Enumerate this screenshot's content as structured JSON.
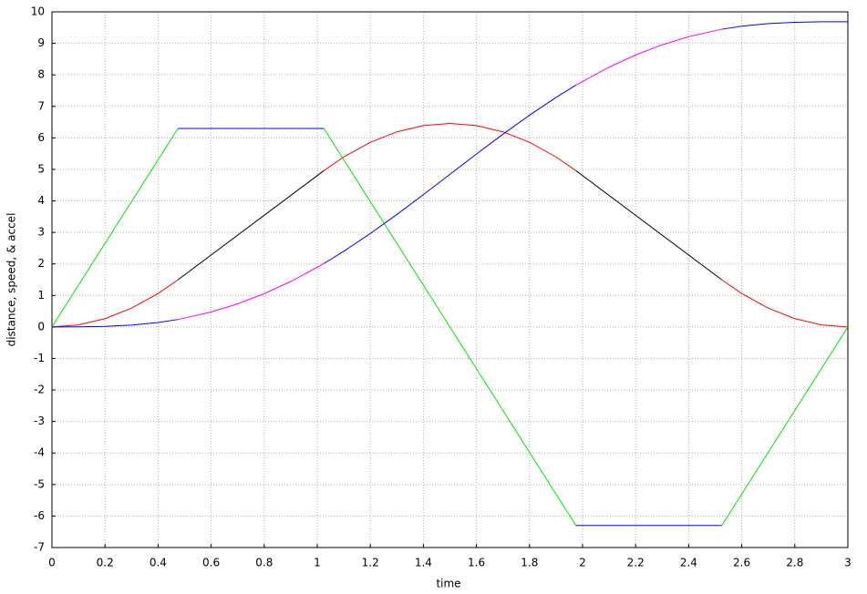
{
  "chart_data": {
    "type": "line",
    "xlabel": "time",
    "ylabel": "distance, speed, & accel",
    "xlim": [
      0,
      3
    ],
    "ylim": [
      -7,
      10
    ],
    "xticks": [
      0,
      0.2,
      0.4,
      0.6,
      0.8,
      1,
      1.2,
      1.4,
      1.6,
      1.8,
      2,
      2.2,
      2.4,
      2.6,
      2.8,
      3
    ],
    "yticks": [
      -7,
      -6,
      -5,
      -4,
      -3,
      -2,
      -1,
      0,
      1,
      2,
      3,
      4,
      5,
      6,
      7,
      8,
      9,
      10
    ],
    "grid": true,
    "series": [
      {
        "color": "#00e600",
        "x": [
          0,
          0.475
        ],
        "values": [
          0,
          6.3
        ]
      },
      {
        "color": "#0000ff",
        "x": [
          0.475,
          1.025
        ],
        "values": [
          6.3,
          6.3
        ]
      },
      {
        "color": "#00e600",
        "x": [
          1.025,
          1.975
        ],
        "values": [
          6.3,
          -6.3
        ]
      },
      {
        "color": "#0000ff",
        "x": [
          1.975,
          2.525
        ],
        "values": [
          -6.3,
          -6.3
        ]
      },
      {
        "color": "#00e600",
        "x": [
          2.525,
          3
        ],
        "values": [
          -6.3,
          0
        ]
      },
      {
        "color": "#ff0000",
        "x": [
          0,
          0.1,
          0.2,
          0.3,
          0.4,
          0.475
        ],
        "values": [
          0,
          0.066,
          0.265,
          0.597,
          1.061,
          1.496
        ]
      },
      {
        "color": "#000000",
        "x": [
          0.475,
          1.025
        ],
        "values": [
          1.496,
          4.961
        ]
      },
      {
        "color": "#ff0000",
        "x": [
          1.025,
          1.1,
          1.2,
          1.3,
          1.4,
          1.5,
          1.6,
          1.7,
          1.8,
          1.9,
          1.975
        ],
        "values": [
          4.961,
          5.396,
          5.86,
          6.192,
          6.391,
          6.457,
          6.391,
          6.192,
          5.86,
          5.396,
          4.961
        ]
      },
      {
        "color": "#000000",
        "x": [
          1.975,
          2.525
        ],
        "values": [
          4.961,
          1.496
        ]
      },
      {
        "color": "#ff0000",
        "x": [
          2.525,
          2.6,
          2.7,
          2.8,
          2.9,
          3
        ],
        "values": [
          1.496,
          1.061,
          0.597,
          0.265,
          0.066,
          0
        ]
      },
      {
        "color": "#0000ff",
        "x": [
          0,
          0.1,
          0.2,
          0.3,
          0.4,
          0.475
        ],
        "values": [
          0,
          0.0022,
          0.0177,
          0.0597,
          0.1415,
          0.2369
        ]
      },
      {
        "color": "#ff00ff",
        "x": [
          0.475,
          0.6,
          0.7,
          0.8,
          0.9,
          1.025
        ],
        "values": [
          0.2369,
          0.473,
          0.733,
          1.056,
          1.442,
          2.013
        ]
      },
      {
        "color": "#0000ff",
        "x": [
          1.025,
          1.1,
          1.2,
          1.3,
          1.4,
          1.5,
          1.6,
          1.7,
          1.8,
          1.9,
          1.975
        ],
        "values": [
          2.013,
          2.402,
          2.966,
          3.569,
          4.199,
          4.843,
          5.487,
          6.117,
          6.72,
          7.284,
          7.673
        ]
      },
      {
        "color": "#ff00ff",
        "x": [
          1.975,
          2.1,
          2.2,
          2.3,
          2.4,
          2.525
        ],
        "values": [
          7.673,
          8.244,
          8.63,
          8.953,
          9.213,
          9.449
        ]
      },
      {
        "color": "#0000ff",
        "x": [
          2.525,
          2.6,
          2.7,
          2.8,
          2.9,
          3
        ],
        "values": [
          9.449,
          9.545,
          9.626,
          9.668,
          9.684,
          9.686
        ]
      }
    ]
  }
}
